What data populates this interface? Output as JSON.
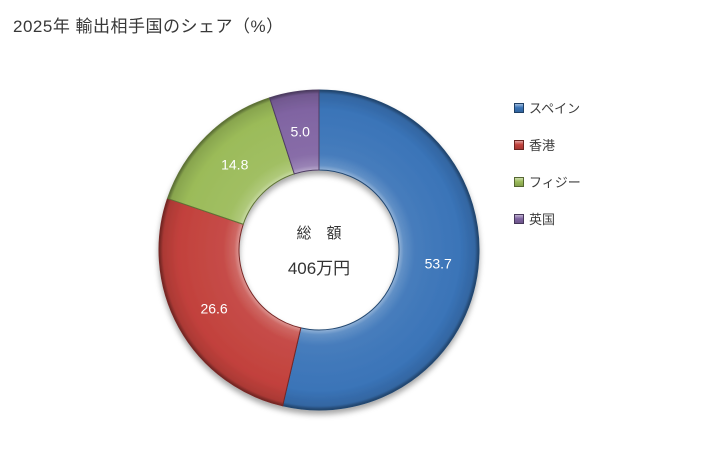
{
  "chart_data": {
    "type": "pie",
    "subtype": "donut",
    "title": "2025年 輸出相手国のシェア（%）",
    "categories": [
      "スペイン",
      "香港",
      "フィジー",
      "英国"
    ],
    "values": [
      53.7,
      26.6,
      14.8,
      5.0
    ],
    "colors": [
      "#3A74B8",
      "#C2413C",
      "#9BBB59",
      "#8064A2"
    ],
    "start_angle_deg": 0,
    "direction": "clockwise",
    "hole_ratio": 0.5,
    "legend_position": "right",
    "data_label_color": "#FFFFFF",
    "data_label_format": "0.1f",
    "center_text": {
      "line1": "総　額",
      "line2": "406万円"
    },
    "background": "#FFFFFF",
    "title_color": "#383838",
    "legend_text_color": "#3D3D3D"
  }
}
